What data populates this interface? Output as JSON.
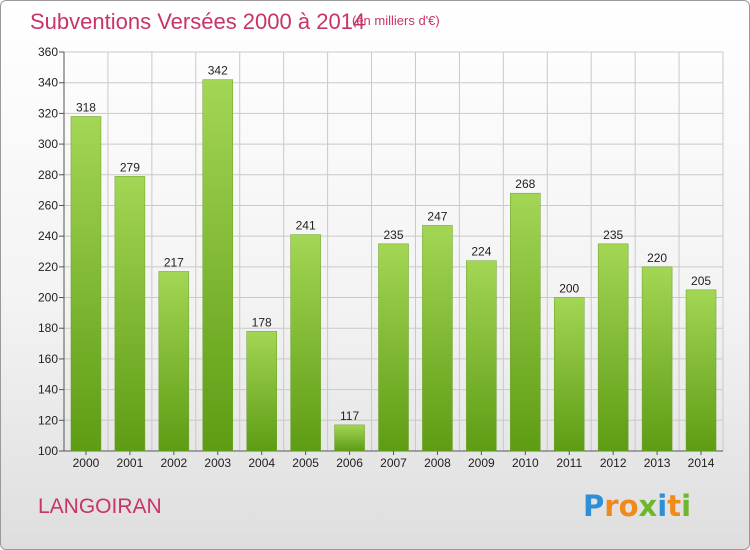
{
  "header": {
    "title": "Subventions Versées 2000 à 2014",
    "subtitle": "(en milliers d'€)"
  },
  "footer": {
    "commune": "LANGOIRAN",
    "brand": "Proxiti",
    "brand_letters": [
      {
        "ch": "P",
        "color": "#2e8fd6"
      },
      {
        "ch": "r",
        "color": "#f08a1c"
      },
      {
        "ch": "o",
        "color": "#f08a1c"
      },
      {
        "ch": "x",
        "color": "#6fb62c"
      },
      {
        "ch": "i",
        "color": "#2e8fd6"
      },
      {
        "ch": "t",
        "color": "#f08a1c"
      },
      {
        "ch": "i",
        "color": "#6fb62c"
      }
    ]
  },
  "colors": {
    "title": "#c8336a",
    "bar_light": "#a3d654",
    "bar_dark": "#5e9c14",
    "grid": "#c9c9c9"
  },
  "chart_data": {
    "type": "bar",
    "title": "Subventions Versées 2000 à 2014",
    "subtitle": "(en milliers d'€)",
    "categories": [
      "2000",
      "2001",
      "2002",
      "2003",
      "2004",
      "2005",
      "2006",
      "2007",
      "2008",
      "2009",
      "2010",
      "2011",
      "2012",
      "2013",
      "2014"
    ],
    "values": [
      318,
      279,
      217,
      342,
      178,
      241,
      117,
      235,
      247,
      224,
      268,
      200,
      235,
      220,
      205
    ],
    "ylim": [
      100,
      360
    ],
    "yticks": [
      100,
      120,
      140,
      160,
      180,
      200,
      220,
      240,
      260,
      280,
      300,
      320,
      340,
      360
    ],
    "grid": true,
    "legend": "none"
  }
}
